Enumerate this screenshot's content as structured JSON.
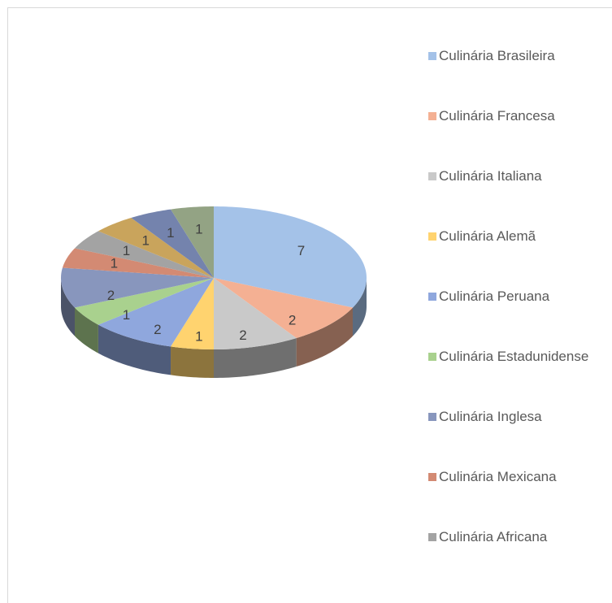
{
  "chart_data": {
    "type": "pie",
    "three_d": true,
    "categories": [
      "Culinária Brasileira",
      "Culinária Francesa",
      "Culinária Italiana",
      "Culinária Alemã",
      "Culinária Peruana",
      "Culinária Estadunidense",
      "Culinária Inglesa",
      "Culinária Mexicana",
      "Culinária Africana",
      null,
      null,
      null
    ],
    "values": [
      7,
      2,
      2,
      1,
      2,
      1,
      2,
      1,
      1,
      1,
      1,
      1
    ],
    "colors": [
      "#a4c2e8",
      "#f4b093",
      "#c9c9c9",
      "#ffd36f",
      "#8fa7dd",
      "#a9d18e",
      "#8896bd",
      "#d38a73",
      "#a3a3a3",
      "#c9a45c",
      "#7483ad",
      "#93a384"
    ],
    "legend": "right"
  }
}
